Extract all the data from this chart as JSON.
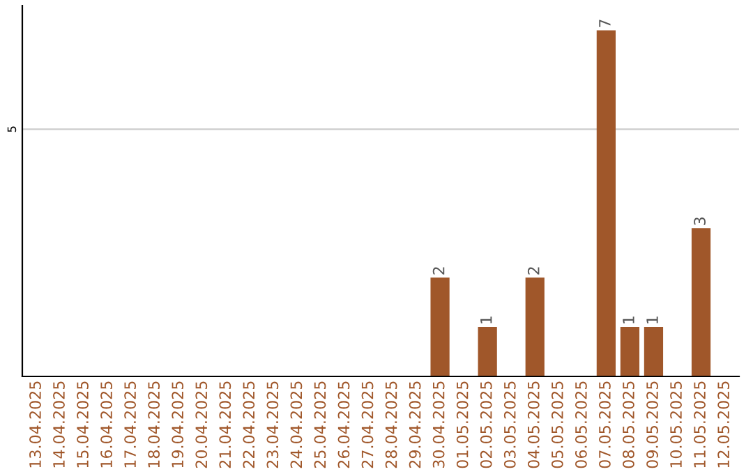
{
  "chart_data": {
    "type": "bar",
    "categories": [
      "13.04.2025",
      "14.04.2025",
      "15.04.2025",
      "16.04.2025",
      "17.04.2025",
      "18.04.2025",
      "19.04.2025",
      "20.04.2025",
      "21.04.2025",
      "22.04.2025",
      "23.04.2025",
      "24.04.2025",
      "25.04.2025",
      "26.04.2025",
      "27.04.2025",
      "28.04.2025",
      "29.04.2025",
      "30.04.2025",
      "01.05.2025",
      "02.05.2025",
      "03.05.2025",
      "04.05.2025",
      "05.05.2025",
      "06.05.2025",
      "07.05.2025",
      "08.05.2025",
      "09.05.2025",
      "10.05.2025",
      "11.05.2025",
      "12.05.2025"
    ],
    "values": [
      null,
      null,
      null,
      null,
      null,
      null,
      null,
      null,
      null,
      null,
      null,
      null,
      null,
      null,
      null,
      null,
      null,
      2,
      null,
      1,
      null,
      2,
      null,
      null,
      7,
      1,
      1,
      null,
      3,
      null
    ],
    "data_labels": true,
    "color": "#a0572a",
    "ylim": [
      0,
      7.5
    ],
    "yticks": [
      5
    ],
    "grid": "y"
  }
}
